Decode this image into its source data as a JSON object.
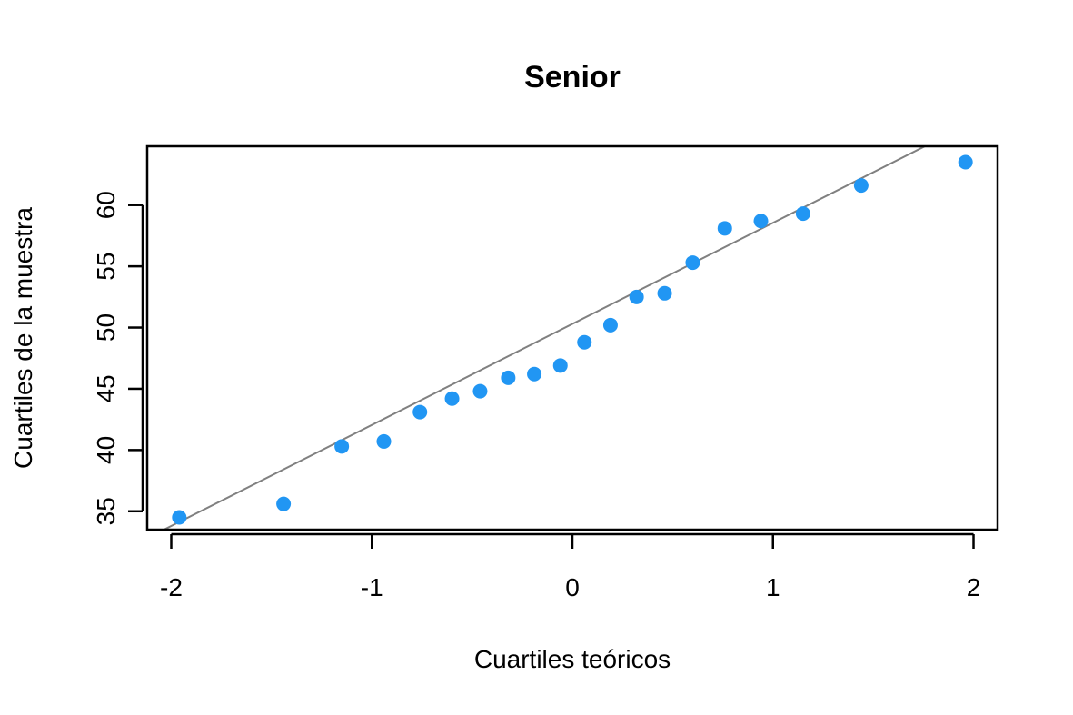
{
  "chart_data": {
    "type": "scatter",
    "title": "Senior",
    "xlabel": "Cuartiles teóricos",
    "ylabel": "Cuartiles de la muestra",
    "xlim": [
      -2.12,
      2.12
    ],
    "ylim": [
      33.5,
      64.8
    ],
    "x_ticks": [
      -2,
      -1,
      0,
      1,
      2
    ],
    "x_tick_labels": [
      "-2",
      "-1",
      "0",
      "1",
      "2"
    ],
    "y_ticks": [
      35,
      40,
      45,
      50,
      55,
      60
    ],
    "y_tick_labels": [
      "35",
      "40",
      "45",
      "50",
      "55",
      "60"
    ],
    "grid": false,
    "points": [
      {
        "x": -1.96,
        "y": 34.5
      },
      {
        "x": -1.44,
        "y": 35.6
      },
      {
        "x": -1.15,
        "y": 40.3
      },
      {
        "x": -0.94,
        "y": 40.7
      },
      {
        "x": -0.76,
        "y": 43.1
      },
      {
        "x": -0.6,
        "y": 44.2
      },
      {
        "x": -0.46,
        "y": 44.8
      },
      {
        "x": -0.32,
        "y": 45.9
      },
      {
        "x": -0.19,
        "y": 46.2
      },
      {
        "x": -0.06,
        "y": 46.9
      },
      {
        "x": 0.06,
        "y": 48.8
      },
      {
        "x": 0.19,
        "y": 50.2
      },
      {
        "x": 0.32,
        "y": 52.5
      },
      {
        "x": 0.46,
        "y": 52.8
      },
      {
        "x": 0.6,
        "y": 55.3
      },
      {
        "x": 0.76,
        "y": 58.1
      },
      {
        "x": 0.94,
        "y": 58.7
      },
      {
        "x": 1.15,
        "y": 59.3
      },
      {
        "x": 1.44,
        "y": 61.6
      },
      {
        "x": 1.96,
        "y": 63.5
      }
    ],
    "reference_line": {
      "intercept": 50.3,
      "slope": 8.25
    },
    "colors": {
      "points": "#2196f3",
      "line": "#808080",
      "frame": "#000000"
    }
  }
}
